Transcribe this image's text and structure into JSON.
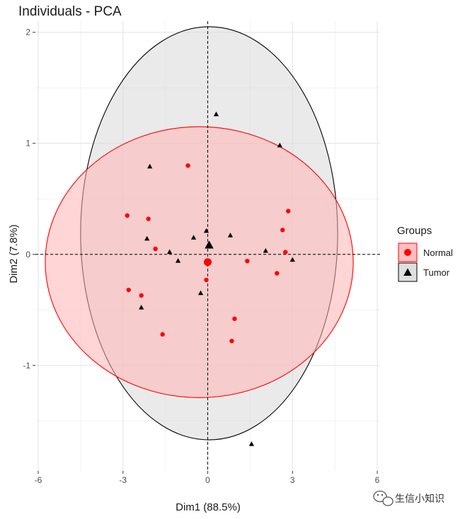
{
  "chart_data": {
    "type": "scatter",
    "title": "Individuals - PCA",
    "xlabel": "Dim1 (88.5%)",
    "ylabel": "Dim2 (7.8%)",
    "xlim": [
      -6.1,
      6.1
    ],
    "ylim": [
      -1.95,
      2.1
    ],
    "xticks": [
      -6,
      -3,
      0,
      3,
      6
    ],
    "xtick_labels": [
      "-6",
      "-3",
      "0",
      "3",
      "6"
    ],
    "yticks": [
      -1,
      0,
      1,
      2
    ],
    "ytick_labels": [
      "-1",
      "0",
      "1",
      "2"
    ],
    "grid": true,
    "reference_lines": {
      "x": 0,
      "y": 0,
      "style": "dashed"
    },
    "legend": {
      "title": "Groups",
      "position": "right"
    },
    "series": [
      {
        "name": "Normal",
        "marker": "circle",
        "color": "#FF0000",
        "fill": "#FFB3B3",
        "points": [
          {
            "x": -0.7,
            "y": 0.8
          },
          {
            "x": -2.85,
            "y": 0.35
          },
          {
            "x": -2.1,
            "y": 0.32
          },
          {
            "x": -1.85,
            "y": 0.05
          },
          {
            "x": -2.8,
            "y": -0.32
          },
          {
            "x": -2.35,
            "y": -0.37
          },
          {
            "x": -1.6,
            "y": -0.72
          },
          {
            "x": -0.05,
            "y": -0.23
          },
          {
            "x": 0.95,
            "y": -0.58
          },
          {
            "x": 0.85,
            "y": -0.78
          },
          {
            "x": 1.4,
            "y": -0.06
          },
          {
            "x": 2.45,
            "y": -0.17
          },
          {
            "x": 2.85,
            "y": 0.39
          },
          {
            "x": 2.65,
            "y": 0.22
          },
          {
            "x": 2.75,
            "y": 0.02
          }
        ],
        "centroid": {
          "x": 0.0,
          "y": -0.07
        },
        "ellipse": {
          "cx": -0.3,
          "cy": -0.07,
          "rx": 5.45,
          "ry": 1.22
        }
      },
      {
        "name": "Tumor",
        "marker": "triangle",
        "color": "#000000",
        "fill": "#D9D9D9",
        "points": [
          {
            "x": 0.3,
            "y": 1.26
          },
          {
            "x": 2.55,
            "y": 0.98
          },
          {
            "x": -2.05,
            "y": 0.79
          },
          {
            "x": -0.05,
            "y": 0.21
          },
          {
            "x": -0.5,
            "y": 0.15
          },
          {
            "x": 0.8,
            "y": 0.17
          },
          {
            "x": -2.15,
            "y": 0.14
          },
          {
            "x": -1.35,
            "y": 0.02
          },
          {
            "x": -1.05,
            "y": -0.06
          },
          {
            "x": 2.05,
            "y": 0.03
          },
          {
            "x": 3.0,
            "y": -0.05
          },
          {
            "x": -0.25,
            "y": -0.35
          },
          {
            "x": -2.35,
            "y": -0.48
          },
          {
            "x": 1.55,
            "y": -1.71
          }
        ],
        "centroid": {
          "x": 0.05,
          "y": 0.08
        },
        "ellipse": {
          "cx": 0.05,
          "cy": 0.19,
          "rx": 4.55,
          "ry": 1.86
        }
      }
    ]
  },
  "watermark": {
    "text": "生信小知识",
    "icon": "wechat-icon"
  }
}
